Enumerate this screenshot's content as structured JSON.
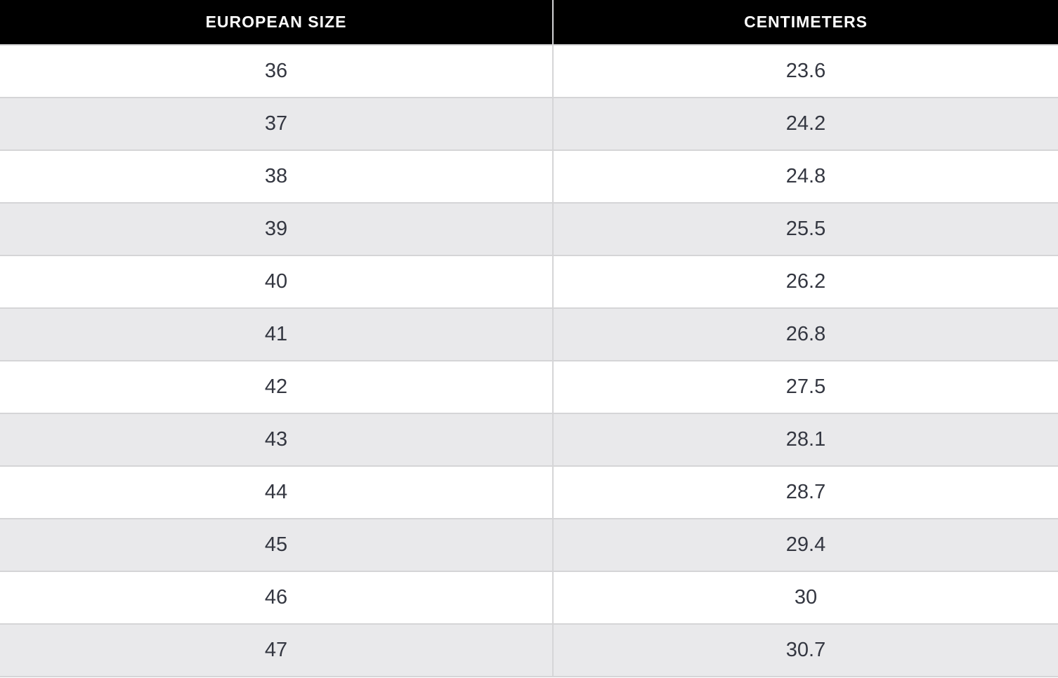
{
  "table": {
    "columns": [
      {
        "label": "EUROPEAN SIZE"
      },
      {
        "label": "CENTIMETERS"
      }
    ],
    "rows": [
      {
        "european_size": "36",
        "centimeters": "23.6"
      },
      {
        "european_size": "37",
        "centimeters": "24.2"
      },
      {
        "european_size": "38",
        "centimeters": "24.8"
      },
      {
        "european_size": "39",
        "centimeters": "25.5"
      },
      {
        "european_size": "40",
        "centimeters": "26.2"
      },
      {
        "european_size": "41",
        "centimeters": "26.8"
      },
      {
        "european_size": "42",
        "centimeters": "27.5"
      },
      {
        "european_size": "43",
        "centimeters": "28.1"
      },
      {
        "european_size": "44",
        "centimeters": "28.7"
      },
      {
        "european_size": "45",
        "centimeters": "29.4"
      },
      {
        "european_size": "46",
        "centimeters": "30"
      },
      {
        "european_size": "47",
        "centimeters": "30.7"
      }
    ]
  },
  "colors": {
    "header_bg": "#000000",
    "header_text": "#ffffff",
    "row_bg": "#ffffff",
    "row_alt_bg": "#e9e9eb",
    "border": "#d5d5d7",
    "cell_text": "#343741"
  }
}
